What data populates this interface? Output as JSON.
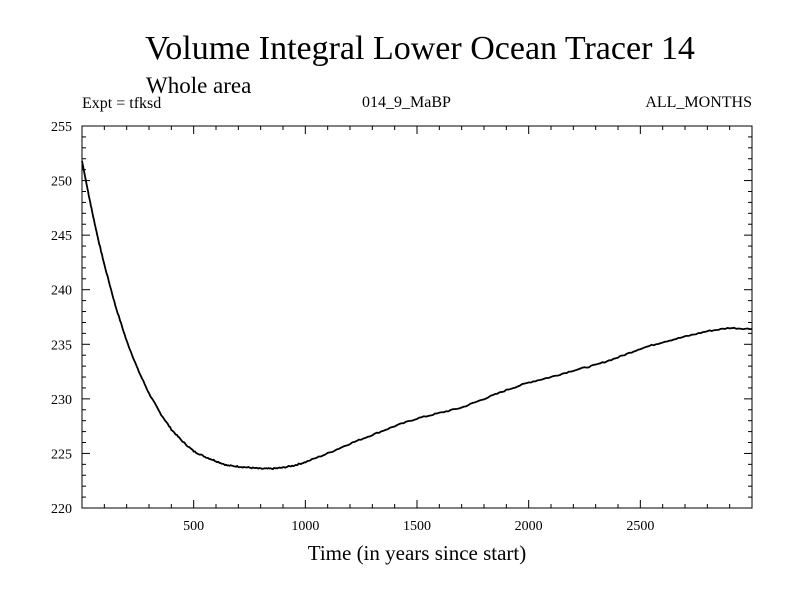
{
  "chart_data": {
    "type": "line",
    "title": "Volume Integral Lower Ocean Tracer 14",
    "subtitle": "Whole area",
    "experiment": "Expt = tfksd",
    "run_id": "014_9_MaBP",
    "period": "ALL_MONTHS",
    "xlabel": "Time (in years since start)",
    "ylabel": "",
    "xlim": [
      0,
      3000
    ],
    "ylim": [
      220,
      255
    ],
    "xticks": [
      500,
      1000,
      1500,
      2000,
      2500
    ],
    "yticks": [
      220,
      225,
      230,
      235,
      240,
      245,
      250,
      255
    ],
    "grid": false,
    "series": [
      {
        "name": "tracer_14",
        "x": [
          0,
          25,
          50,
          75,
          100,
          150,
          200,
          250,
          300,
          350,
          400,
          450,
          500,
          550,
          600,
          650,
          700,
          750,
          800,
          850,
          900,
          950,
          1000,
          1100,
          1200,
          1300,
          1400,
          1500,
          1600,
          1700,
          1800,
          1900,
          2000,
          2100,
          2200,
          2300,
          2400,
          2500,
          2600,
          2700,
          2800,
          2900,
          3000
        ],
        "y": [
          251.8,
          249.2,
          246.7,
          244.4,
          242.3,
          238.5,
          235.3,
          232.7,
          230.5,
          228.7,
          227.2,
          226.1,
          225.2,
          224.7,
          224.3,
          223.9,
          223.8,
          223.7,
          223.6,
          223.6,
          223.7,
          223.9,
          224.2,
          225.0,
          225.9,
          226.7,
          227.5,
          228.2,
          228.7,
          229.2,
          230.0,
          230.8,
          231.5,
          232.0,
          232.6,
          233.1,
          233.8,
          234.6,
          235.2,
          235.7,
          236.2,
          236.5,
          236.4
        ]
      }
    ]
  }
}
